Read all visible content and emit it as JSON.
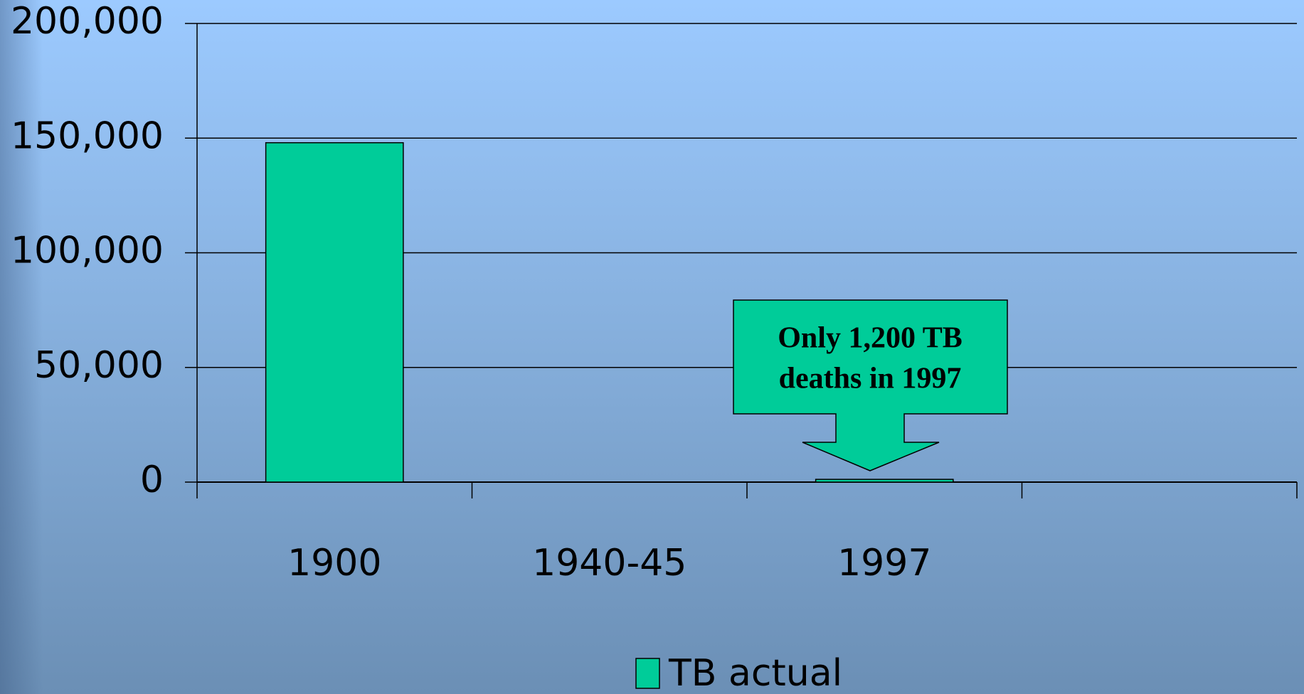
{
  "chart_data": {
    "type": "bar",
    "categories": [
      "1900",
      "1940-45",
      "1997",
      null
    ],
    "series": [
      {
        "name": "TB actual",
        "color": "#00cc99",
        "values": [
          148000,
          null,
          1200,
          null
        ]
      }
    ],
    "ylim": [
      0,
      200000
    ],
    "yticks": [
      0,
      {
        "value": 50000,
        "label": "50,000"
      },
      {
        "value": 100000,
        "label": "100,000"
      },
      {
        "value": 150000,
        "label": "150,000"
      },
      {
        "value": 200000,
        "label": "200,000"
      }
    ],
    "grid": true,
    "legend": "bottom",
    "annotation": {
      "lines": [
        "Only 1,200 TB",
        "deaths in 1997"
      ],
      "color": "#00cc99"
    }
  }
}
